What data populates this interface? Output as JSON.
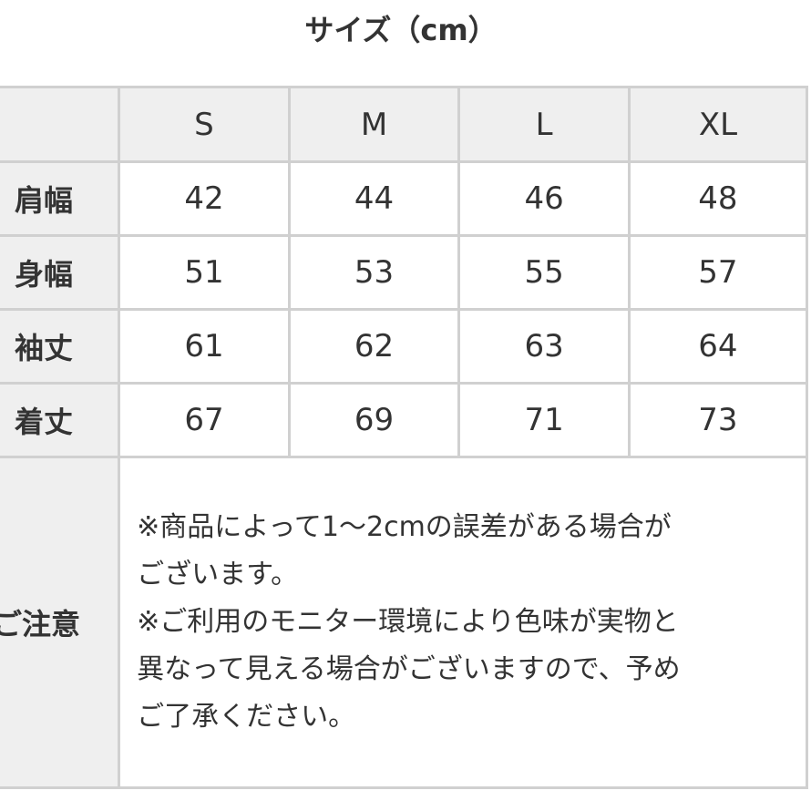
{
  "title": "サイズ（cm）",
  "sizes": [
    "S",
    "M",
    "L",
    "XL"
  ],
  "rows": [
    {
      "label": "肩幅",
      "values": [
        "42",
        "44",
        "46",
        "48"
      ]
    },
    {
      "label": "身幅",
      "values": [
        "51",
        "53",
        "55",
        "57"
      ]
    },
    {
      "label": "袖丈",
      "values": [
        "61",
        "62",
        "63",
        "64"
      ]
    },
    {
      "label": "着丈",
      "values": [
        "67",
        "69",
        "71",
        "73"
      ]
    }
  ],
  "note": {
    "label": "ご注意",
    "lines": [
      "※商品によって1〜2cmの誤差がある場合が",
      "ございます。",
      "※ご利用のモニター環境により色味が実物と",
      "異なって見える場合がございますので、予め",
      "ご了承ください。"
    ]
  }
}
